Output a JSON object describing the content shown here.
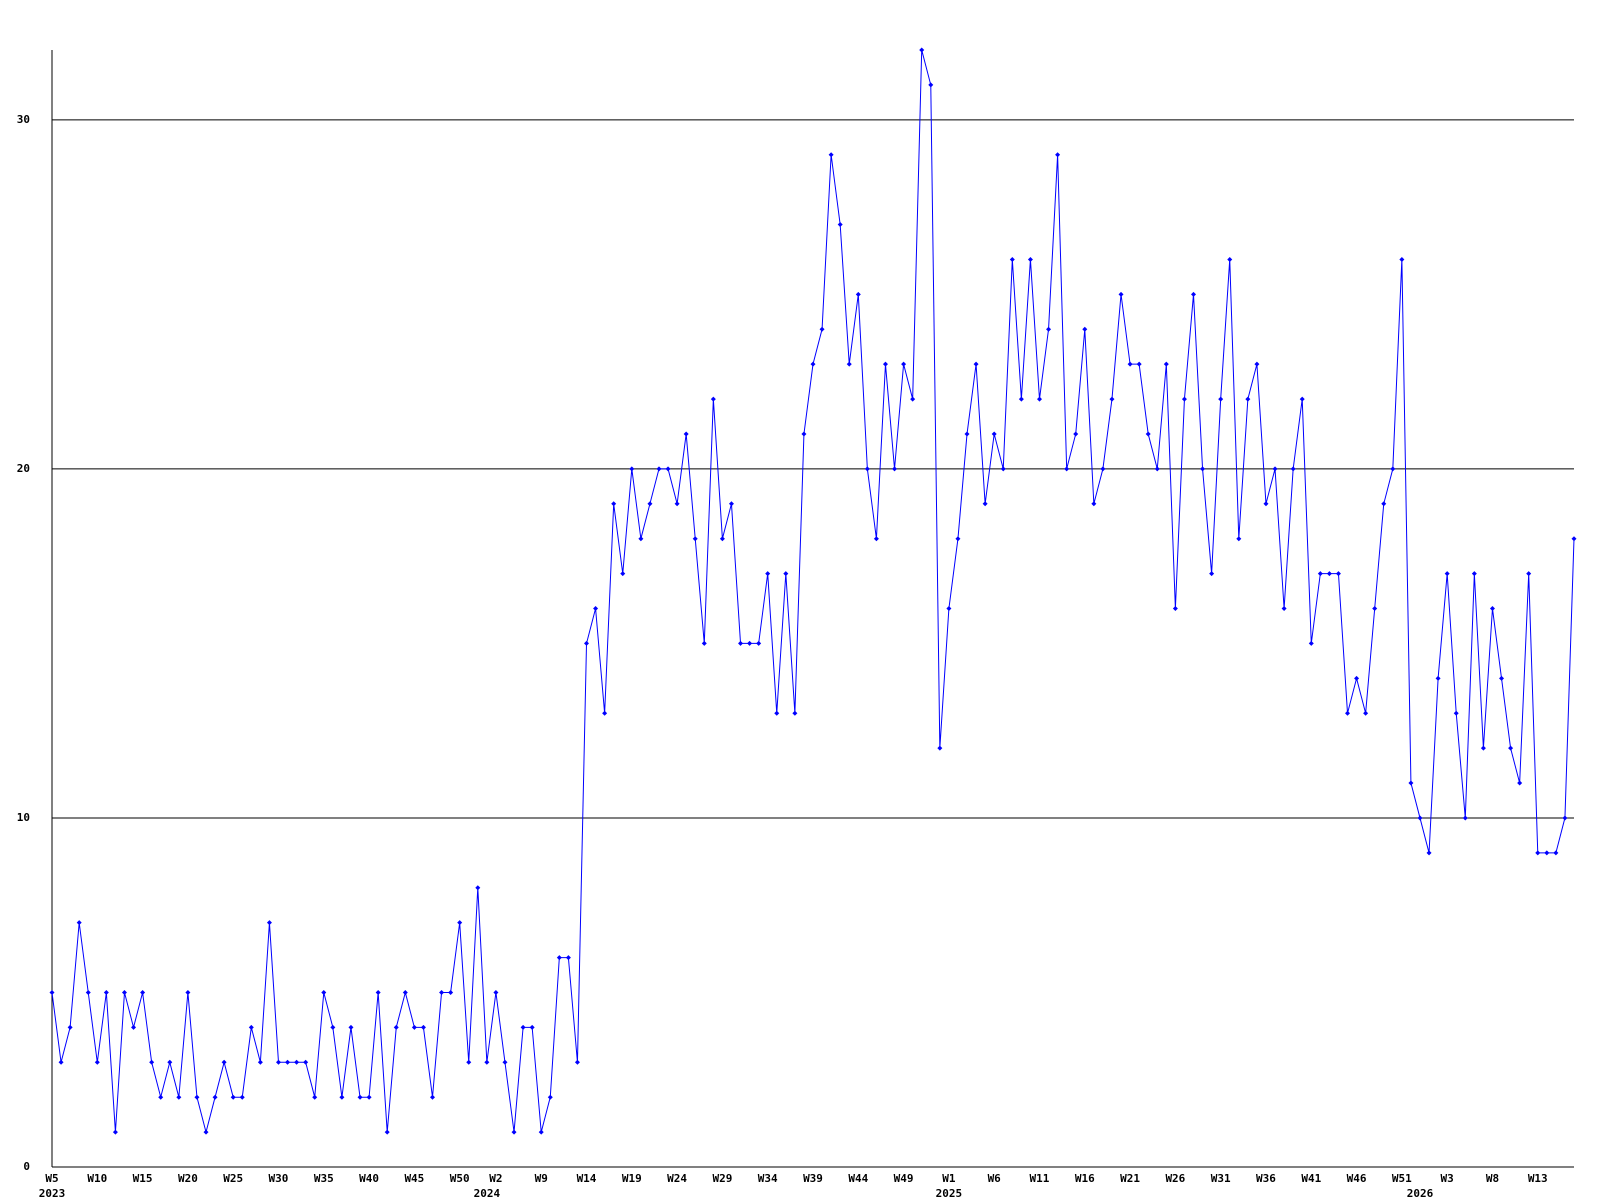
{
  "chart_data": {
    "type": "line",
    "categories": [
      "W5",
      null,
      null,
      null,
      null,
      "W10",
      null,
      null,
      null,
      null,
      "W15",
      null,
      null,
      null,
      null,
      "W20",
      null,
      null,
      null,
      null,
      "W25",
      null,
      null,
      null,
      null,
      "W30",
      null,
      null,
      null,
      null,
      "W35",
      null,
      null,
      null,
      null,
      "W40",
      null,
      null,
      null,
      null,
      "W45",
      null,
      null,
      null,
      null,
      "W50",
      null,
      null,
      null,
      "W2",
      null,
      null,
      null,
      null,
      "W9",
      null,
      null,
      null,
      null,
      "W14",
      null,
      null,
      null,
      null,
      "W19",
      null,
      null,
      null,
      null,
      "W24",
      null,
      null,
      null,
      null,
      "W29",
      null,
      null,
      null,
      null,
      "W34",
      null,
      null,
      null,
      null,
      "W39",
      null,
      null,
      null,
      null,
      "W44",
      null,
      null,
      null,
      null,
      "W49",
      null,
      null,
      null,
      null,
      "W1",
      null,
      null,
      null,
      null,
      "W6",
      null,
      null,
      null,
      null,
      "W11",
      null,
      null,
      null,
      null,
      "W16",
      null,
      null,
      null,
      null,
      "W21",
      null,
      null,
      null,
      null,
      "W26",
      null,
      null,
      null,
      null,
      "W31",
      null,
      null,
      null,
      null,
      "W36",
      null,
      null,
      null,
      null,
      "W41",
      null,
      null,
      null,
      null,
      "W46",
      null,
      null,
      null,
      null,
      "W51",
      null,
      null,
      null,
      null,
      "W3",
      null,
      null,
      null,
      null,
      "W8",
      null,
      null,
      null,
      null,
      "W13",
      null,
      null,
      null,
      null
    ],
    "year_categories": [
      "2023",
      null,
      null,
      null,
      null,
      null,
      null,
      null,
      null,
      null,
      null,
      null,
      null,
      null,
      null,
      null,
      null,
      null,
      null,
      null,
      null,
      null,
      null,
      null,
      null,
      null,
      null,
      null,
      null,
      null,
      null,
      null,
      null,
      null,
      null,
      null,
      null,
      null,
      null,
      null,
      null,
      null,
      null,
      null,
      null,
      null,
      null,
      null,
      "2024",
      null,
      null,
      null,
      null,
      null,
      null,
      null,
      null,
      null,
      null,
      null,
      null,
      null,
      null,
      null,
      null,
      null,
      null,
      null,
      null,
      null,
      null,
      null,
      null,
      null,
      null,
      null,
      null,
      null,
      null,
      null,
      null,
      null,
      null,
      null,
      null,
      null,
      null,
      null,
      null,
      null,
      null,
      null,
      null,
      null,
      null,
      null,
      null,
      null,
      null,
      "2025",
      null,
      null,
      null,
      null,
      null,
      null,
      null,
      null,
      null,
      null,
      null,
      null,
      null,
      null,
      null,
      null,
      null,
      null,
      null,
      null,
      null,
      null,
      null,
      null,
      null,
      null,
      null,
      null,
      null,
      null,
      null,
      null,
      null,
      null,
      null,
      null,
      null,
      null,
      null,
      null,
      null,
      null,
      null,
      null,
      null,
      null,
      null,
      null,
      null,
      null,
      null,
      "2026",
      null,
      null,
      null,
      null,
      null,
      null,
      null,
      null,
      null,
      null,
      null,
      null,
      null,
      null,
      null,
      null,
      null
    ],
    "series": [
      {
        "color": "#0000ff",
        "values": [
          5,
          3,
          4,
          7,
          5,
          3,
          5,
          1,
          5,
          4,
          5,
          3,
          2,
          3,
          2,
          5,
          2,
          1,
          2,
          3,
          2,
          2,
          4,
          3,
          7,
          3,
          3,
          3,
          3,
          2,
          5,
          4,
          2,
          4,
          2,
          2,
          5,
          1,
          4,
          5,
          4,
          4,
          2,
          5,
          5,
          7,
          3,
          8,
          3,
          5,
          3,
          1,
          4,
          4,
          1,
          2,
          6,
          6,
          3,
          15,
          16,
          13,
          19,
          17,
          20,
          18,
          19,
          20,
          20,
          19,
          21,
          18,
          15,
          22,
          18,
          19,
          15,
          15,
          15,
          17,
          13,
          17,
          13,
          21,
          23,
          24,
          29,
          27,
          23,
          25,
          20,
          18,
          23,
          20,
          23,
          22,
          32,
          31,
          12,
          16,
          18,
          21,
          23,
          19,
          21,
          20,
          26,
          22,
          26,
          22,
          24,
          29,
          20,
          21,
          24,
          19,
          20,
          22,
          25,
          23,
          23,
          21,
          20,
          23,
          16,
          22,
          25,
          20,
          17,
          22,
          26,
          18,
          22,
          23,
          19,
          20,
          16,
          20,
          22,
          15,
          17,
          17,
          17,
          13,
          14,
          13,
          16,
          19,
          20,
          26,
          11,
          10,
          9,
          14,
          17,
          13,
          10,
          17,
          12,
          16,
          14,
          12,
          11,
          17,
          9,
          9,
          9,
          10,
          18
        ]
      }
    ],
    "ylim": [
      0,
      32
    ],
    "yticks": [
      0,
      10,
      20,
      30
    ],
    "grid": true
  }
}
